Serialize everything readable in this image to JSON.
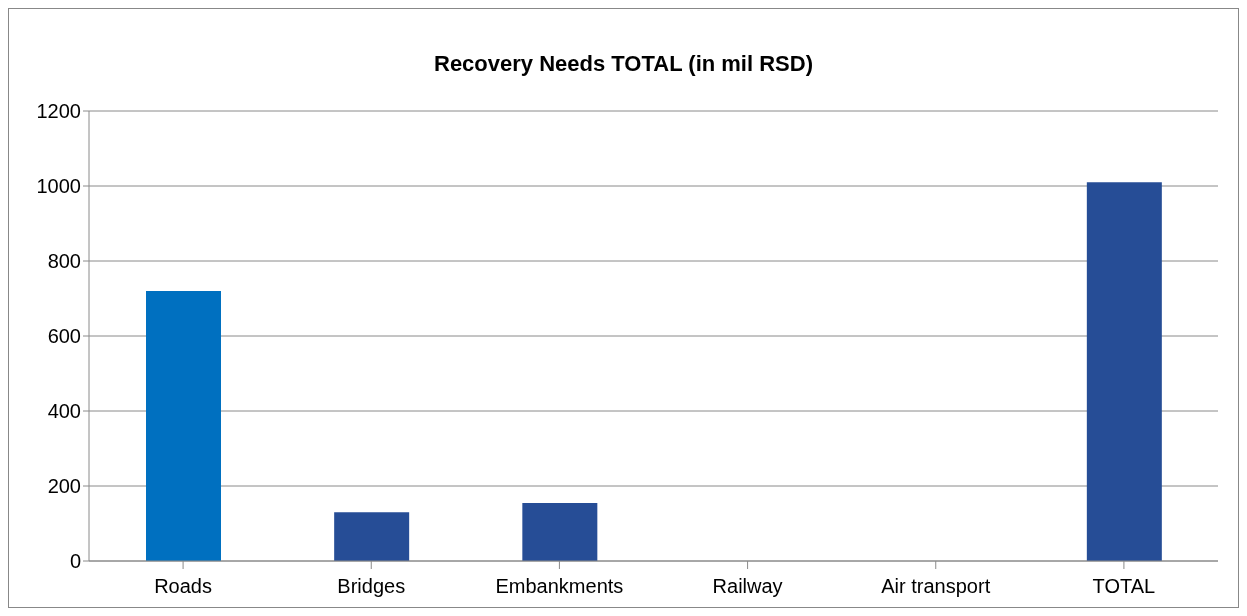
{
  "chart_data": {
    "type": "bar",
    "title": "Recovery Needs TOTAL (in mil RSD)",
    "categories": [
      "Roads",
      "Bridges",
      "Embankments",
      "Railway",
      "Air transport",
      "TOTAL"
    ],
    "values": [
      720,
      130,
      155,
      0,
      0,
      1010
    ],
    "colors": [
      "#0070c0",
      "#264d96",
      "#264d96",
      "#264d96",
      "#264d96",
      "#264d96"
    ],
    "ylim": [
      0,
      1200
    ],
    "yticks": [
      0,
      200,
      400,
      600,
      800,
      1000,
      1200
    ],
    "grid": "y"
  }
}
